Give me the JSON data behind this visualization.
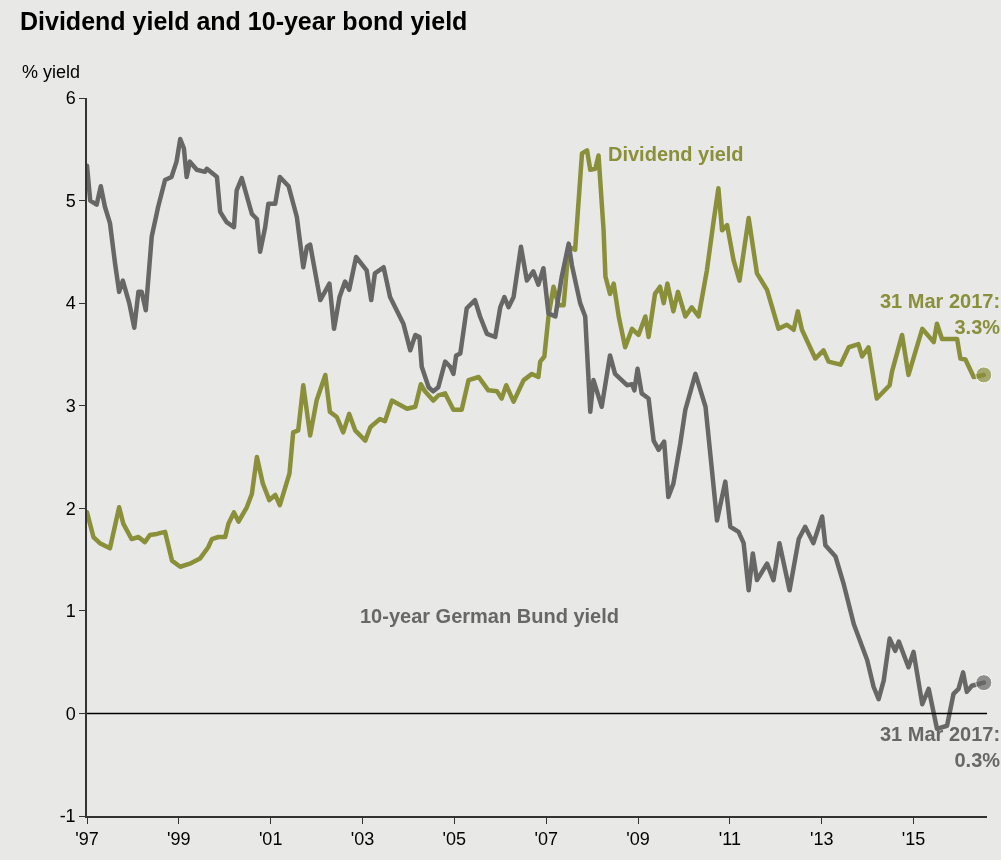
{
  "chart_data": {
    "type": "line",
    "title": "Dividend yield and 10-year bond yield",
    "ylabel": "% yield",
    "xlim": [
      1997,
      2016.6
    ],
    "xticks": [
      {
        "value": 1997,
        "label": "'97"
      },
      {
        "value": 1999,
        "label": "'99"
      },
      {
        "value": 2001,
        "label": "'01"
      },
      {
        "value": 2003,
        "label": "'03"
      },
      {
        "value": 2005,
        "label": "'05"
      },
      {
        "value": 2007,
        "label": "'07"
      },
      {
        "value": 2009,
        "label": "'09"
      },
      {
        "value": 2011,
        "label": "'11"
      },
      {
        "value": 2013,
        "label": "'13"
      },
      {
        "value": 2015,
        "label": "'15"
      }
    ],
    "ylim": [
      -1,
      6
    ],
    "yticks": [
      -1,
      0,
      1,
      2,
      3,
      4,
      5,
      6
    ],
    "grid": false,
    "legend": false,
    "ref_lines": [
      {
        "axis": "y",
        "value": 0,
        "color": "#000000"
      }
    ],
    "annotations": [
      {
        "text": "31 Mar 2017:\n3.3%",
        "x": 2016.53,
        "y": 3.3
      },
      {
        "text": "31 Mar 2017:\n0.3%",
        "x": 2016.53,
        "y": 0.3
      }
    ],
    "series": [
      {
        "name": "Dividend yield",
        "color": "#8a8f3a",
        "x": [
          1997.0,
          1997.14,
          1997.28,
          1997.5,
          1997.7,
          1997.79,
          1997.97,
          1998.12,
          1998.26,
          1998.37,
          1998.52,
          1998.7,
          1998.85,
          1999.03,
          1999.24,
          1999.46,
          1999.64,
          1999.72,
          1999.86,
          2000.01,
          2000.08,
          2000.2,
          2000.3,
          2000.48,
          2000.59,
          2000.7,
          2000.83,
          2000.97,
          2001.1,
          2001.2,
          2001.41,
          2001.49,
          2001.6,
          2001.71,
          2001.86,
          2002.0,
          2002.19,
          2002.29,
          2002.44,
          2002.58,
          2002.71,
          2002.84,
          2003.06,
          2003.17,
          2003.27,
          2003.38,
          2003.49,
          2003.64,
          2003.97,
          2004.15,
          2004.27,
          2004.36,
          2004.54,
          2004.65,
          2004.8,
          2004.98,
          2005.16,
          2005.31,
          2005.53,
          2005.74,
          2005.93,
          2006.03,
          2006.13,
          2006.29,
          2006.51,
          2006.69,
          2006.83,
          2006.87,
          2006.96,
          2007.05,
          2007.16,
          2007.27,
          2007.38,
          2007.49,
          2007.63,
          2007.78,
          2007.89,
          2007.96,
          2008.07,
          2008.14,
          2008.25,
          2008.29,
          2008.39,
          2008.47,
          2008.58,
          2008.72,
          2008.87,
          2009.01,
          2009.16,
          2009.23,
          2009.37,
          2009.48,
          2009.56,
          2009.64,
          2009.77,
          2009.87,
          2010.03,
          2010.17,
          2010.32,
          2010.5,
          2010.64,
          2010.75,
          2010.83,
          2010.94,
          2011.08,
          2011.21,
          2011.41,
          2011.59,
          2011.81,
          2012.06,
          2012.24,
          2012.39,
          2012.48,
          2012.57,
          2012.86,
          2013.04,
          2013.15,
          2013.41,
          2013.59,
          2013.8,
          2013.88,
          2014.02,
          2014.2,
          2014.48,
          2014.53,
          2014.75,
          2014.89,
          2015.19,
          2015.44,
          2015.51,
          2015.62,
          2015.95,
          2016.02,
          2016.13,
          2016.31,
          2016.53
        ],
        "values": [
          1.96,
          1.72,
          1.66,
          1.61,
          2.01,
          1.85,
          1.7,
          1.72,
          1.67,
          1.74,
          1.75,
          1.77,
          1.49,
          1.43,
          1.46,
          1.51,
          1.62,
          1.7,
          1.72,
          1.72,
          1.85,
          1.96,
          1.87,
          2.01,
          2.14,
          2.5,
          2.24,
          2.08,
          2.13,
          2.03,
          2.34,
          2.74,
          2.76,
          3.2,
          2.71,
          3.05,
          3.3,
          2.94,
          2.89,
          2.74,
          2.92,
          2.76,
          2.66,
          2.79,
          2.83,
          2.87,
          2.85,
          3.05,
          2.97,
          2.99,
          3.21,
          3.14,
          3.05,
          3.1,
          3.12,
          2.96,
          2.96,
          3.25,
          3.28,
          3.15,
          3.14,
          3.07,
          3.2,
          3.04,
          3.25,
          3.31,
          3.28,
          3.43,
          3.48,
          3.87,
          4.16,
          3.98,
          3.98,
          4.55,
          4.52,
          5.46,
          5.49,
          5.3,
          5.31,
          5.44,
          4.71,
          4.26,
          4.09,
          4.19,
          3.87,
          3.57,
          3.75,
          3.69,
          3.87,
          3.67,
          4.09,
          4.16,
          4.0,
          4.19,
          3.92,
          4.11,
          3.87,
          3.96,
          3.87,
          4.32,
          4.78,
          5.12,
          4.71,
          4.76,
          4.42,
          4.22,
          4.83,
          4.29,
          4.13,
          3.75,
          3.79,
          3.74,
          3.92,
          3.74,
          3.46,
          3.54,
          3.43,
          3.4,
          3.57,
          3.6,
          3.48,
          3.57,
          3.07,
          3.2,
          3.33,
          3.69,
          3.3,
          3.75,
          3.62,
          3.8,
          3.65,
          3.65,
          3.46,
          3.45,
          3.28,
          3.3
        ]
      },
      {
        "name": "10-year German Bund yield",
        "color": "#676767",
        "x": [
          1997.0,
          1997.07,
          1997.21,
          1997.3,
          1997.39,
          1997.5,
          1997.61,
          1997.7,
          1997.78,
          1997.92,
          1998.03,
          1998.12,
          1998.19,
          1998.28,
          1998.41,
          1998.55,
          1998.7,
          1998.84,
          1998.95,
          1999.03,
          1999.11,
          1999.17,
          1999.24,
          1999.39,
          1999.57,
          1999.61,
          1999.75,
          1999.83,
          1999.9,
          2000.04,
          2000.2,
          2000.26,
          2000.37,
          2000.59,
          2000.7,
          2000.77,
          2000.88,
          2000.95,
          2001.1,
          2001.2,
          2001.39,
          2001.57,
          2001.71,
          2001.79,
          2001.86,
          2002.08,
          2002.28,
          2002.38,
          2002.5,
          2002.62,
          2002.71,
          2002.86,
          2003.09,
          2003.19,
          2003.27,
          2003.46,
          2003.6,
          2003.89,
          2004.04,
          2004.15,
          2004.24,
          2004.29,
          2004.44,
          2004.54,
          2004.65,
          2004.8,
          2004.91,
          2004.98,
          2005.04,
          2005.13,
          2005.27,
          2005.45,
          2005.56,
          2005.71,
          2005.89,
          2006.0,
          2006.09,
          2006.18,
          2006.29,
          2006.45,
          2006.58,
          2006.72,
          2006.83,
          2006.94,
          2007.05,
          2007.2,
          2007.34,
          2007.49,
          2007.56,
          2007.74,
          2007.85,
          2007.96,
          2008.03,
          2008.21,
          2008.39,
          2008.5,
          2008.76,
          2008.87,
          2008.92,
          2008.99,
          2009.08,
          2009.23,
          2009.34,
          2009.45,
          2009.57,
          2009.66,
          2009.77,
          2009.92,
          2010.03,
          2010.25,
          2010.47,
          2010.61,
          2010.72,
          2010.9,
          2011.01,
          2011.19,
          2011.3,
          2011.41,
          2011.5,
          2011.59,
          2011.81,
          2011.95,
          2012.08,
          2012.3,
          2012.5,
          2012.64,
          2012.82,
          2013.01,
          2013.08,
          2013.3,
          2013.48,
          2013.7,
          2013.99,
          2014.13,
          2014.24,
          2014.35,
          2014.48,
          2014.6,
          2014.68,
          2014.89,
          2015.0,
          2015.19,
          2015.33,
          2015.51,
          2015.73,
          2015.87,
          2015.98,
          2016.08,
          2016.16,
          2016.27,
          2016.53
        ],
        "values": [
          5.34,
          5.0,
          4.96,
          5.14,
          4.94,
          4.78,
          4.39,
          4.11,
          4.22,
          4.0,
          3.76,
          4.11,
          4.11,
          3.93,
          4.65,
          4.94,
          5.2,
          5.23,
          5.38,
          5.6,
          5.51,
          5.23,
          5.38,
          5.3,
          5.28,
          5.31,
          5.26,
          5.23,
          4.89,
          4.79,
          4.74,
          5.1,
          5.22,
          4.87,
          4.82,
          4.5,
          4.74,
          4.97,
          4.97,
          5.23,
          5.14,
          4.84,
          4.35,
          4.55,
          4.57,
          4.03,
          4.19,
          3.75,
          4.06,
          4.21,
          4.13,
          4.45,
          4.32,
          4.03,
          4.29,
          4.35,
          4.06,
          3.8,
          3.54,
          3.69,
          3.67,
          3.38,
          3.18,
          3.14,
          3.18,
          3.43,
          3.38,
          3.31,
          3.49,
          3.51,
          3.95,
          4.03,
          3.87,
          3.7,
          3.67,
          3.96,
          4.06,
          3.96,
          4.06,
          4.55,
          4.22,
          4.31,
          4.18,
          4.34,
          3.9,
          3.87,
          4.26,
          4.58,
          4.37,
          4.0,
          3.87,
          2.94,
          3.25,
          2.99,
          3.49,
          3.31,
          3.2,
          3.21,
          3.15,
          3.36,
          3.12,
          3.07,
          2.66,
          2.57,
          2.65,
          2.11,
          2.24,
          2.63,
          2.96,
          3.31,
          2.99,
          2.37,
          1.88,
          2.26,
          1.82,
          1.77,
          1.66,
          1.2,
          1.56,
          1.3,
          1.46,
          1.3,
          1.66,
          1.2,
          1.7,
          1.82,
          1.66,
          1.92,
          1.64,
          1.53,
          1.26,
          0.87,
          0.52,
          0.26,
          0.14,
          0.32,
          0.73,
          0.61,
          0.7,
          0.45,
          0.6,
          0.09,
          0.24,
          -0.15,
          -0.12,
          0.19,
          0.24,
          0.4,
          0.21,
          0.27,
          0.3
        ]
      }
    ]
  }
}
